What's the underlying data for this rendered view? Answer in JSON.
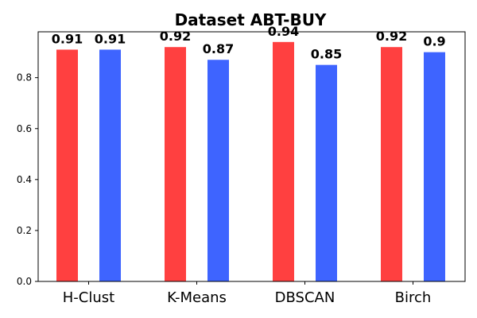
{
  "chart_data": {
    "type": "bar",
    "title": "Dataset ABT-BUY",
    "xlabel": "",
    "ylabel": "",
    "categories": [
      "H-Clust",
      "K-Means",
      "DBSCAN",
      "Birch"
    ],
    "series": [
      {
        "color": "#ff4040",
        "values": [
          0.91,
          0.92,
          0.94,
          0.92
        ],
        "labels": [
          "0.91",
          "0.92",
          "0.94",
          "0.92"
        ]
      },
      {
        "color": "#3e64ff",
        "values": [
          0.91,
          0.87,
          0.85,
          0.9
        ],
        "labels": [
          "0.91",
          "0.87",
          "0.85",
          "0.9"
        ]
      }
    ],
    "ylim": [
      0,
      0.98
    ],
    "yticks": [
      0.0,
      0.2,
      0.4,
      0.6,
      0.8
    ],
    "ytick_labels": [
      "0.0",
      "0.2",
      "0.4",
      "0.6",
      "0.8"
    ],
    "grid": false,
    "legend": "none"
  }
}
